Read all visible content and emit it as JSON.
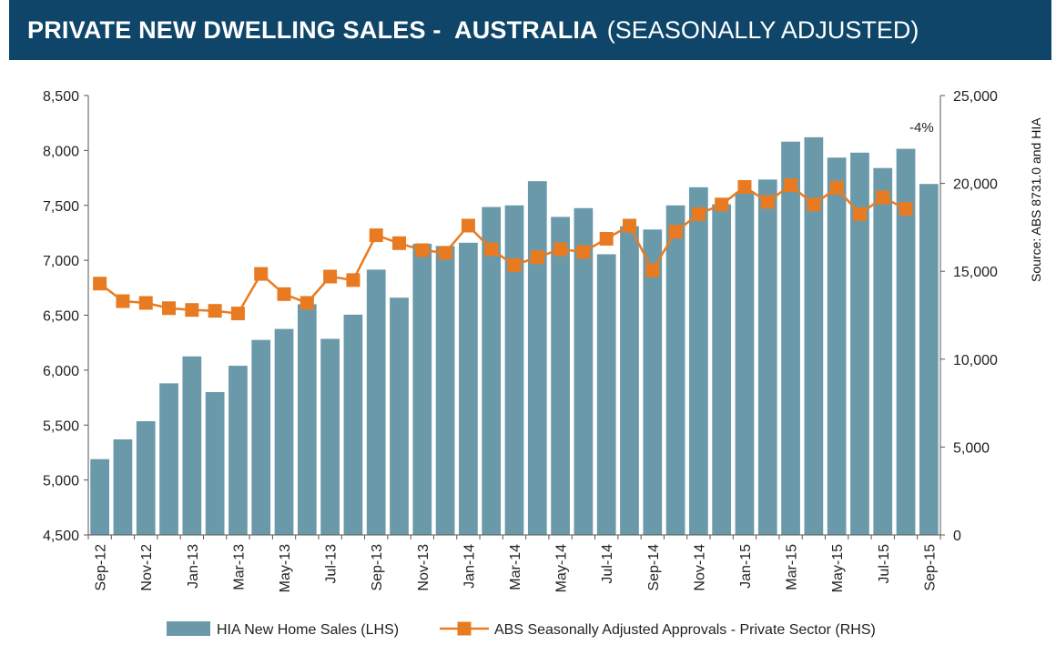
{
  "header": {
    "title_bold": "PRIVATE NEW DWELLING SALES -  AUSTRALIA",
    "title_light": "(SEASONALLY ADJUSTED)",
    "background": "#0e4569"
  },
  "source_note": "Source: ABS 8731.0 and HIA",
  "chart_data": {
    "type": "bar",
    "x": [
      "Sep-12",
      "Oct-12",
      "Nov-12",
      "Dec-12",
      "Jan-13",
      "Feb-13",
      "Mar-13",
      "Apr-13",
      "May-13",
      "Jun-13",
      "Jul-13",
      "Aug-13",
      "Sep-13",
      "Oct-13",
      "Nov-13",
      "Dec-13",
      "Jan-14",
      "Feb-14",
      "Mar-14",
      "Apr-14",
      "May-14",
      "Jun-14",
      "Jul-14",
      "Aug-14",
      "Sep-14",
      "Oct-14",
      "Nov-14",
      "Dec-14",
      "Jan-15",
      "Feb-15",
      "Mar-15",
      "Apr-15",
      "May-15",
      "Jun-15",
      "Jul-15",
      "Aug-15",
      "Sep-15"
    ],
    "x_tick_labels": [
      "Sep-12",
      "Nov-12",
      "Jan-13",
      "Mar-13",
      "May-13",
      "Jul-13",
      "Sep-13",
      "Nov-13",
      "Jan-14",
      "Mar-14",
      "May-14",
      "Jul-14",
      "Sep-14",
      "Nov-14",
      "Jan-15",
      "Mar-15",
      "May-15",
      "Jul-15",
      "Sep-15"
    ],
    "series": [
      {
        "name": "HIA New Home Sales (LHS)",
        "type": "bar",
        "axis": "left",
        "color": "#6a9aaa",
        "values": [
          5190,
          5370,
          5535,
          5880,
          6125,
          5800,
          6040,
          6275,
          6375,
          6600,
          6285,
          6505,
          6915,
          6660,
          7150,
          7130,
          7160,
          7485,
          7500,
          7720,
          7395,
          7475,
          7055,
          7310,
          7280,
          7500,
          7665,
          7510,
          7620,
          7735,
          8080,
          8120,
          7935,
          7980,
          7840,
          8015,
          7695
        ]
      },
      {
        "name": "ABS Seasonally Adjusted Approvals - Private Sector (RHS)",
        "type": "line",
        "axis": "right",
        "color": "#e87b22",
        "values": [
          14300,
          13300,
          13200,
          12900,
          12800,
          12750,
          12600,
          14850,
          13700,
          13200,
          14700,
          14500,
          17050,
          16600,
          16200,
          16050,
          17600,
          16250,
          15350,
          15800,
          16250,
          16100,
          16850,
          17600,
          15050,
          17250,
          18250,
          18800,
          19800,
          18950,
          19900,
          18800,
          19750,
          18250,
          19200,
          18550,
          null
        ]
      }
    ],
    "y_left": {
      "min": 4500,
      "max": 8500,
      "step": 500,
      "tick_labels": [
        "4,500",
        "5,000",
        "5,500",
        "6,000",
        "6,500",
        "7,000",
        "7,500",
        "8,000",
        "8,500"
      ]
    },
    "y_right": {
      "min": 0,
      "max": 25000,
      "step": 5000,
      "tick_labels": [
        "0",
        "5,000",
        "10,000",
        "15,000",
        "20,000",
        "25,000"
      ]
    },
    "annotations": [
      {
        "text": "-4%",
        "at": "Sep-15"
      }
    ],
    "grid": false,
    "legend_position": "bottom"
  }
}
